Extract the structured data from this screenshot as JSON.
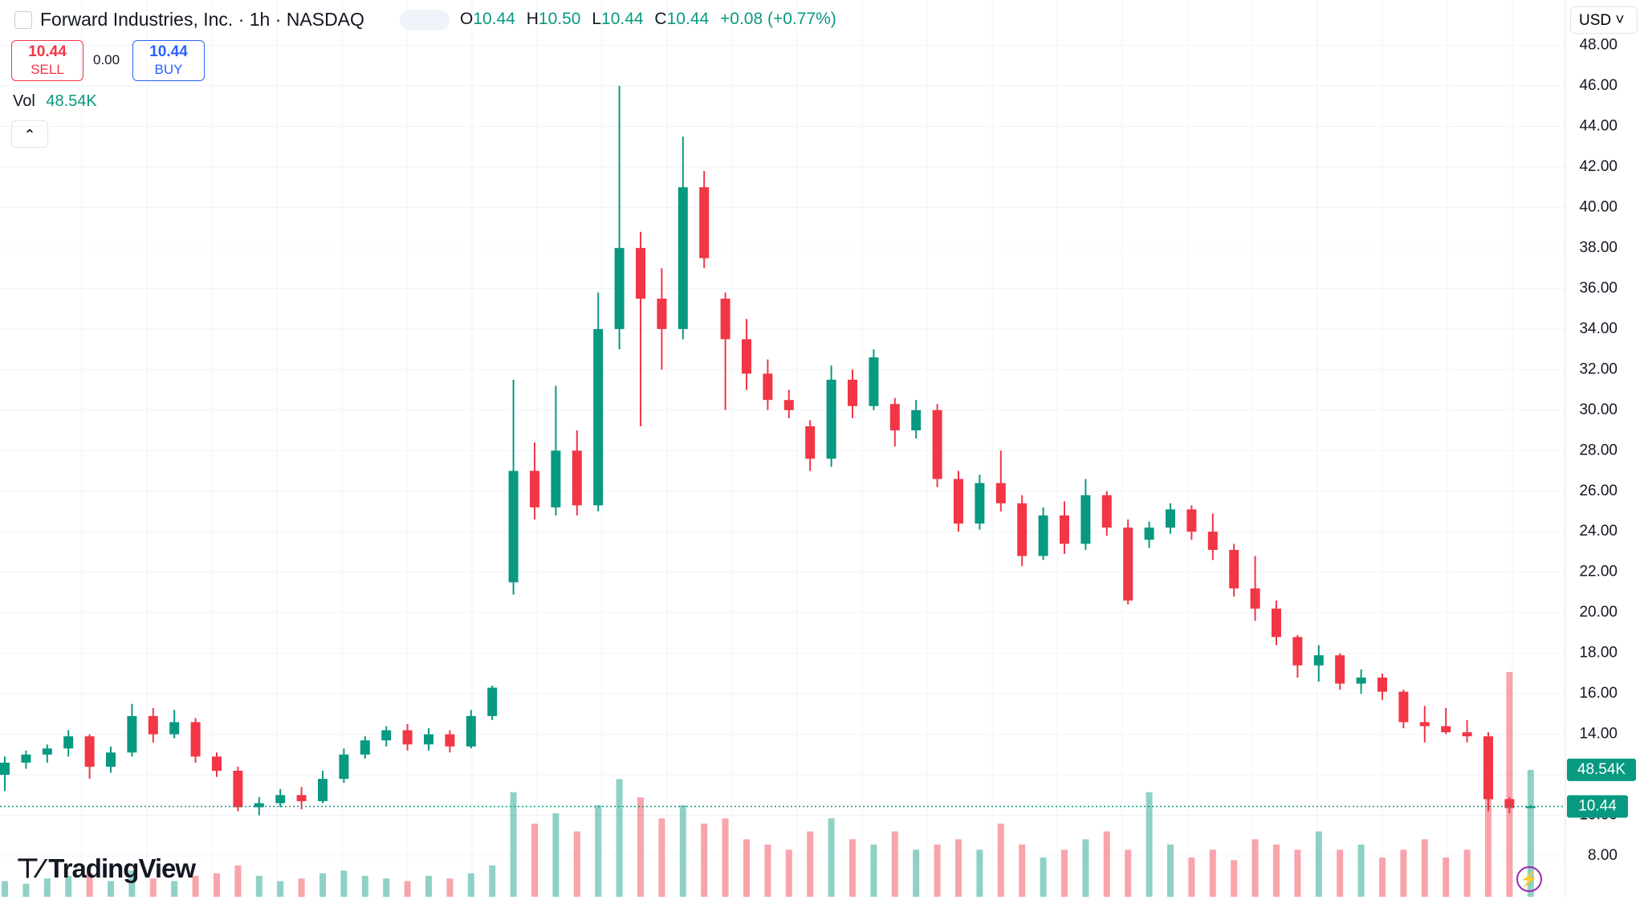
{
  "header": {
    "title": "Forward Industries, Inc. · 1h · NASDAQ",
    "o_label": "O",
    "open": "10.44",
    "h_label": "H",
    "high": "10.50",
    "l_label": "L",
    "low": "10.44",
    "c_label": "C",
    "close": "10.44",
    "change": "+0.08 (+0.77%)",
    "currency": "USD"
  },
  "trade": {
    "sell_price": "10.44",
    "sell_label": "SELL",
    "spread": "0.00",
    "buy_price": "10.44",
    "buy_label": "BUY"
  },
  "volume_legend": {
    "label": "Vol",
    "value": "48.54K"
  },
  "logo": "TradingView",
  "chart_data": {
    "type": "candlestick",
    "ohlc": [
      [
        12.0,
        12.9,
        11.2,
        12.6
      ],
      [
        12.6,
        13.2,
        12.3,
        13.0
      ],
      [
        13.0,
        13.5,
        12.6,
        13.3
      ],
      [
        13.3,
        14.2,
        12.9,
        13.9
      ],
      [
        13.9,
        14.0,
        11.8,
        12.4
      ],
      [
        12.4,
        13.4,
        12.1,
        13.1
      ],
      [
        13.1,
        15.5,
        12.9,
        14.9
      ],
      [
        14.9,
        15.3,
        13.6,
        14.0
      ],
      [
        14.0,
        15.2,
        13.8,
        14.6
      ],
      [
        14.6,
        14.8,
        12.6,
        12.9
      ],
      [
        12.9,
        13.1,
        11.9,
        12.2
      ],
      [
        12.2,
        12.4,
        10.2,
        10.4
      ],
      [
        10.4,
        10.9,
        10.0,
        10.6
      ],
      [
        10.6,
        11.3,
        10.4,
        11.0
      ],
      [
        11.0,
        11.4,
        10.3,
        10.7
      ],
      [
        10.7,
        12.2,
        10.6,
        11.8
      ],
      [
        11.8,
        13.3,
        11.6,
        13.0
      ],
      [
        13.0,
        13.9,
        12.8,
        13.7
      ],
      [
        13.7,
        14.4,
        13.4,
        14.2
      ],
      [
        14.2,
        14.5,
        13.2,
        13.5
      ],
      [
        13.5,
        14.3,
        13.2,
        14.0
      ],
      [
        14.0,
        14.2,
        13.1,
        13.4
      ],
      [
        13.4,
        15.2,
        13.3,
        14.9
      ],
      [
        14.9,
        16.4,
        14.7,
        16.3
      ],
      [
        21.5,
        31.5,
        20.9,
        27.0
      ],
      [
        27.0,
        28.4,
        24.6,
        25.2
      ],
      [
        25.2,
        31.2,
        24.8,
        28.0
      ],
      [
        28.0,
        29.0,
        24.8,
        25.3
      ],
      [
        25.3,
        35.8,
        25.0,
        34.0
      ],
      [
        34.0,
        46.0,
        33.0,
        38.0
      ],
      [
        38.0,
        38.8,
        29.2,
        35.5
      ],
      [
        35.5,
        37.0,
        32.0,
        34.0
      ],
      [
        34.0,
        43.5,
        33.5,
        41.0
      ],
      [
        41.0,
        41.8,
        37.0,
        37.5
      ],
      [
        35.5,
        35.8,
        30.0,
        33.5
      ],
      [
        33.5,
        34.5,
        31.0,
        31.8
      ],
      [
        31.8,
        32.5,
        30.0,
        30.5
      ],
      [
        30.5,
        31.0,
        29.6,
        30.0
      ],
      [
        29.2,
        29.5,
        27.0,
        27.6
      ],
      [
        27.6,
        32.2,
        27.2,
        31.5
      ],
      [
        31.5,
        32.0,
        29.6,
        30.2
      ],
      [
        30.2,
        33.0,
        30.0,
        32.6
      ],
      [
        30.3,
        30.6,
        28.2,
        29.0
      ],
      [
        29.0,
        30.5,
        28.6,
        30.0
      ],
      [
        30.0,
        30.3,
        26.2,
        26.6
      ],
      [
        26.6,
        27.0,
        24.0,
        24.4
      ],
      [
        24.4,
        26.8,
        24.1,
        26.4
      ],
      [
        26.4,
        28.0,
        25.0,
        25.4
      ],
      [
        25.4,
        25.8,
        22.3,
        22.8
      ],
      [
        22.8,
        25.2,
        22.6,
        24.8
      ],
      [
        24.8,
        25.5,
        22.9,
        23.4
      ],
      [
        23.4,
        26.6,
        23.1,
        25.8
      ],
      [
        25.8,
        26.0,
        23.8,
        24.2
      ],
      [
        24.2,
        24.6,
        20.4,
        20.6
      ],
      [
        23.6,
        24.5,
        23.2,
        24.2
      ],
      [
        24.2,
        25.4,
        23.9,
        25.1
      ],
      [
        25.1,
        25.3,
        23.6,
        24.0
      ],
      [
        24.0,
        24.9,
        22.6,
        23.1
      ],
      [
        23.1,
        23.4,
        20.8,
        21.2
      ],
      [
        21.2,
        22.8,
        19.6,
        20.2
      ],
      [
        20.2,
        20.6,
        18.4,
        18.8
      ],
      [
        18.8,
        18.9,
        16.8,
        17.4
      ],
      [
        17.4,
        18.4,
        16.6,
        17.9
      ],
      [
        17.9,
        18.0,
        16.2,
        16.5
      ],
      [
        16.5,
        17.2,
        16.0,
        16.8
      ],
      [
        16.8,
        17.0,
        15.7,
        16.1
      ],
      [
        16.1,
        16.2,
        14.3,
        14.6
      ],
      [
        14.6,
        15.4,
        13.6,
        14.4
      ],
      [
        14.4,
        15.3,
        14.0,
        14.1
      ],
      [
        14.1,
        14.7,
        13.6,
        13.9
      ],
      [
        13.9,
        14.1,
        10.2,
        10.8
      ],
      [
        10.8,
        10.9,
        10.1,
        10.36
      ],
      [
        10.44,
        10.5,
        10.44,
        10.44
      ]
    ],
    "volume": [
      6,
      5,
      7,
      8,
      9,
      6,
      10,
      7,
      6,
      8,
      9,
      12,
      8,
      6,
      7,
      9,
      10,
      8,
      7,
      6,
      8,
      7,
      9,
      12,
      40,
      28,
      32,
      25,
      35,
      45,
      38,
      30,
      35,
      28,
      30,
      22,
      20,
      18,
      25,
      30,
      22,
      20,
      25,
      18,
      20,
      22,
      18,
      28,
      20,
      15,
      18,
      22,
      25,
      18,
      40,
      20,
      15,
      18,
      14,
      22,
      20,
      18,
      25,
      18,
      20,
      15,
      18,
      22,
      15,
      18,
      50,
      86,
      48.54
    ],
    "up_color": "#089981",
    "down_color": "#f23645",
    "ylim": [
      5.98,
      50.24
    ],
    "yticks": [
      {
        "value": 8,
        "label": "8.00"
      },
      {
        "value": 10,
        "label": "10.00"
      },
      {
        "value": 12,
        "label": "12.00"
      },
      {
        "value": 14,
        "label": "14.00"
      },
      {
        "value": 16,
        "label": "16.00"
      },
      {
        "value": 18,
        "label": "18.00"
      },
      {
        "value": 20,
        "label": "20.00"
      },
      {
        "value": 22,
        "label": "22.00"
      },
      {
        "value": 24,
        "label": "24.00"
      },
      {
        "value": 26,
        "label": "26.00"
      },
      {
        "value": 28,
        "label": "28.00"
      },
      {
        "value": 30,
        "label": "30.00"
      },
      {
        "value": 32,
        "label": "32.00"
      },
      {
        "value": 34,
        "label": "34.00"
      },
      {
        "value": 36,
        "label": "36.00"
      },
      {
        "value": 38,
        "label": "38.00"
      },
      {
        "value": 40,
        "label": "40.00"
      },
      {
        "value": 42,
        "label": "42.00"
      },
      {
        "value": 44,
        "label": "44.00"
      },
      {
        "value": 46,
        "label": "46.00"
      },
      {
        "value": 48,
        "label": "48.00"
      }
    ],
    "volume_lim": [
      0,
      343
    ],
    "last_price": {
      "value": 10.44,
      "label": "10.44"
    },
    "last_volume": {
      "value": 48.54,
      "label": "48.54K"
    },
    "grid": true
  }
}
